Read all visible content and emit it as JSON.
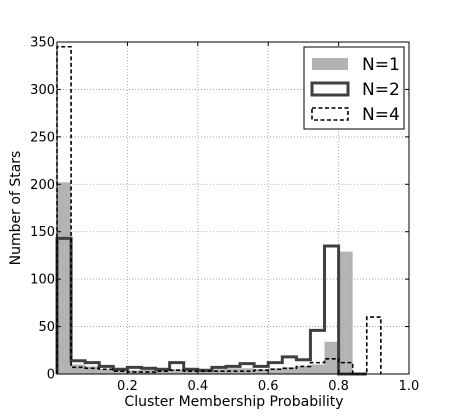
{
  "chart_data": {
    "type": "bar",
    "subtype": "step-histogram",
    "xlabel": "Cluster Membership Probability",
    "ylabel": "Number  of  Stars",
    "xlim": [
      0.0,
      1.0
    ],
    "ylim": [
      0,
      350
    ],
    "grid": true,
    "legend_position": "top-right",
    "x_ticks": [
      0.2,
      0.4,
      0.6,
      0.8,
      1.0
    ],
    "x_tick_labels": [
      "0.2",
      "0.4",
      "0.6",
      "0.8",
      "1.0"
    ],
    "y_ticks": [
      0,
      50,
      100,
      150,
      200,
      250,
      300,
      350
    ],
    "y_tick_labels": [
      "0",
      "50",
      "100",
      "150",
      "200",
      "250",
      "300",
      "350"
    ],
    "bin_edges": [
      0.0,
      0.04,
      0.08,
      0.12,
      0.16,
      0.2,
      0.24,
      0.28,
      0.32,
      0.36,
      0.4,
      0.44,
      0.48,
      0.52,
      0.56,
      0.6,
      0.64,
      0.68,
      0.72,
      0.76,
      0.8,
      0.84,
      0.88,
      0.92
    ],
    "series": [
      {
        "name": "N=1",
        "style": "filled",
        "color": "#b3b3b3",
        "bin_edges": [
          0.0,
          0.04,
          0.08,
          0.12,
          0.16,
          0.2,
          0.24,
          0.28,
          0.32,
          0.36,
          0.4,
          0.44,
          0.48,
          0.52,
          0.56,
          0.6,
          0.64,
          0.68,
          0.72,
          0.76,
          0.78,
          0.8,
          0.82,
          0.84
        ],
        "values": [
          202,
          10,
          8,
          5,
          5,
          4,
          5,
          4,
          5,
          4,
          4,
          5,
          6,
          6,
          5,
          6,
          7,
          8,
          10,
          34,
          34,
          129,
          129
        ]
      },
      {
        "name": "N=2",
        "style": "thick-outline",
        "color": "#404040",
        "bin_edges": [
          0.0,
          0.04,
          0.08,
          0.12,
          0.16,
          0.2,
          0.24,
          0.28,
          0.32,
          0.36,
          0.4,
          0.44,
          0.48,
          0.52,
          0.56,
          0.6,
          0.64,
          0.68,
          0.72,
          0.76,
          0.8,
          0.84,
          0.88
        ],
        "values": [
          143,
          14,
          12,
          8,
          5,
          7,
          6,
          5,
          12,
          5,
          4,
          7,
          8,
          11,
          8,
          12,
          18,
          15,
          46,
          135,
          0,
          0
        ]
      },
      {
        "name": "N=4",
        "style": "dashed-outline",
        "color": "#000000",
        "bin_edges": [
          0.0,
          0.04,
          0.08,
          0.12,
          0.16,
          0.2,
          0.24,
          0.28,
          0.32,
          0.36,
          0.4,
          0.44,
          0.48,
          0.52,
          0.56,
          0.6,
          0.64,
          0.68,
          0.72,
          0.76,
          0.8,
          0.84,
          0.88,
          0.92
        ],
        "values": [
          345,
          7,
          6,
          5,
          3,
          2,
          2,
          3,
          4,
          3,
          3,
          3,
          3,
          3,
          4,
          5,
          6,
          8,
          12,
          16,
          12,
          0,
          60
        ]
      }
    ]
  }
}
